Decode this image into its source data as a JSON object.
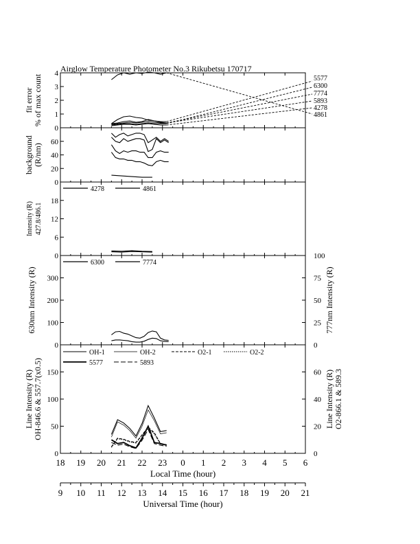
{
  "title": "Airglow Temperature Photometer No.3   Rikubetsu    170717",
  "axes": {
    "local_time": {
      "label": "Local Time (hour)",
      "range": [
        18,
        30
      ],
      "ticks": [
        "18",
        "19",
        "20",
        "21",
        "22",
        "23",
        "0",
        "1",
        "2",
        "3",
        "4",
        "5",
        "6"
      ]
    },
    "universal_time": {
      "label": "Universal Time (hour)",
      "range": [
        9,
        21
      ],
      "ticks": [
        "9",
        "10",
        "11",
        "12",
        "13",
        "14",
        "15",
        "16",
        "17",
        "18",
        "19",
        "20",
        "21"
      ]
    }
  },
  "chart_data": [
    {
      "type": "line",
      "panel": "fit-error",
      "ylabel": [
        "fit error",
        "% of max count"
      ],
      "ylim": [
        0,
        4
      ],
      "yticks": [
        "0",
        "1",
        "2",
        "3",
        "4"
      ],
      "legend": [
        "5577",
        "6300",
        "7774",
        "5893",
        "4278",
        "4861"
      ],
      "legend_placement": "right",
      "series": [
        {
          "name": "5577",
          "style": "solid",
          "x": [
            20.5,
            20.8,
            21.1,
            21.4,
            21.7,
            22.0,
            22.3,
            22.6,
            22.9,
            23.2
          ],
          "y": [
            3.5,
            3.85,
            4.0,
            3.9,
            4.0,
            3.95,
            4.05,
            4.0,
            3.9,
            4.0
          ],
          "end_y": 1.0
        },
        {
          "name": "6300",
          "style": "solid",
          "x": [
            20.5,
            20.8,
            21.1,
            21.4,
            21.7,
            22.0,
            22.3,
            22.6,
            22.9,
            23.2
          ],
          "y": [
            0.3,
            0.35,
            0.45,
            0.5,
            0.4,
            0.45,
            0.6,
            0.5,
            0.45,
            0.45
          ],
          "end_y": 3.4
        },
        {
          "name": "7774",
          "style": "solid",
          "x": [
            20.5,
            20.8,
            21.1,
            21.4,
            21.7,
            22.0,
            22.3,
            22.6,
            22.9,
            23.2
          ],
          "y": [
            0.2,
            0.25,
            0.3,
            0.3,
            0.25,
            0.3,
            0.35,
            0.3,
            0.3,
            0.3
          ],
          "end_y": 2.95
        },
        {
          "name": "5893",
          "style": "solid",
          "x": [
            20.5,
            20.8,
            21.1,
            21.4,
            21.7,
            22.0,
            22.3,
            22.6,
            22.9,
            23.2
          ],
          "y": [
            0.3,
            0.6,
            0.8,
            0.85,
            0.75,
            0.7,
            0.55,
            0.5,
            0.4,
            0.35
          ],
          "end_y": 2.45
        },
        {
          "name": "4278",
          "style": "solid",
          "x": [
            20.5,
            20.8,
            21.1,
            21.4,
            21.7,
            22.0,
            22.3,
            22.6,
            22.9,
            23.2
          ],
          "y": [
            0.25,
            0.3,
            0.35,
            0.4,
            0.35,
            0.4,
            0.45,
            0.4,
            0.35,
            0.35
          ],
          "end_y": 1.95
        },
        {
          "name": "4861",
          "style": "solid",
          "x": [
            20.5,
            20.8,
            21.1,
            21.4,
            21.7,
            22.0,
            22.3,
            22.6,
            22.9,
            23.2
          ],
          "y": [
            0.15,
            0.2,
            0.25,
            0.25,
            0.2,
            0.25,
            0.3,
            0.25,
            0.2,
            0.2
          ],
          "end_y": 1.45
        }
      ]
    },
    {
      "type": "line",
      "panel": "background",
      "ylabel": [
        "background",
        "(R/nm)"
      ],
      "ylim": [
        0,
        80
      ],
      "yticks": [
        "0",
        "20",
        "40",
        "60"
      ],
      "series": [
        {
          "x": [
            20.5,
            20.7,
            20.9,
            21.1,
            21.3,
            21.5,
            21.7,
            21.9,
            22.1,
            22.3,
            22.5,
            22.7,
            22.9,
            23.1,
            23.3
          ],
          "y": [
            72,
            66,
            70,
            72,
            68,
            70,
            72,
            72,
            70,
            58,
            62,
            66,
            60,
            64,
            60
          ]
        },
        {
          "x": [
            20.5,
            20.7,
            20.9,
            21.1,
            21.3,
            21.5,
            21.7,
            21.9,
            22.1,
            22.3,
            22.5,
            22.7,
            22.9,
            23.1,
            23.3
          ],
          "y": [
            66,
            60,
            58,
            64,
            60,
            62,
            64,
            64,
            62,
            45,
            48,
            64,
            58,
            62,
            58
          ]
        },
        {
          "x": [
            20.5,
            20.7,
            20.9,
            21.1,
            21.3,
            21.5,
            21.7,
            21.9,
            22.1,
            22.3,
            22.5,
            22.7,
            22.9,
            23.1,
            23.3
          ],
          "y": [
            55,
            46,
            42,
            46,
            44,
            46,
            46,
            44,
            44,
            36,
            36,
            44,
            46,
            44,
            44
          ]
        },
        {
          "x": [
            20.5,
            20.7,
            20.9,
            21.1,
            21.3,
            21.5,
            21.7,
            21.9,
            22.1,
            22.3,
            22.5,
            22.7,
            22.9,
            23.1,
            23.3
          ],
          "y": [
            44,
            36,
            34,
            34,
            32,
            32,
            30,
            30,
            28,
            25,
            24,
            30,
            32,
            30,
            30
          ]
        },
        {
          "x": [
            20.5,
            21.0,
            21.5,
            22.0,
            22.5
          ],
          "y": [
            10,
            9,
            8,
            7,
            7
          ]
        }
      ]
    },
    {
      "type": "line",
      "panel": "intensity-ratio",
      "ylabel": [
        "Intensity (R)",
        "427.8/486.1"
      ],
      "ylim": [
        0,
        24
      ],
      "yticks": [
        "0",
        "6",
        "12",
        "18"
      ],
      "legend": [
        "4278",
        "4861"
      ],
      "legend_placement": "top-left",
      "series": [
        {
          "name": "4278",
          "x": [
            20.5,
            21.0,
            21.5,
            22.0,
            22.5
          ],
          "y": [
            1.5,
            1.4,
            1.6,
            1.4,
            1.3
          ]
        },
        {
          "name": "4861",
          "x": [
            20.5,
            21.0,
            21.5,
            22.0,
            22.5
          ],
          "y": [
            1.2,
            1.1,
            1.3,
            1.2,
            1.1
          ]
        }
      ]
    },
    {
      "type": "line",
      "panel": "630-777",
      "ylabel": "630nm Intensity (R)",
      "ylim": [
        0,
        400
      ],
      "yticks": [
        "0",
        "100",
        "200",
        "300"
      ],
      "y2label": "777nm Intensity (R)",
      "y2lim": [
        0,
        100
      ],
      "y2ticks": [
        "0",
        "25",
        "50",
        "75",
        "100"
      ],
      "legend": [
        "6300",
        "7774"
      ],
      "legend_placement": "top-left",
      "series": [
        {
          "name": "6300",
          "x": [
            20.5,
            20.7,
            20.9,
            21.1,
            21.3,
            21.5,
            21.7,
            21.9,
            22.1,
            22.3,
            22.5,
            22.7,
            22.9,
            23.1,
            23.3
          ],
          "y": [
            45,
            58,
            60,
            52,
            48,
            40,
            32,
            30,
            38,
            55,
            62,
            58,
            30,
            22,
            20
          ]
        },
        {
          "name": "7774",
          "x": [
            20.5,
            20.7,
            20.9,
            21.1,
            21.3,
            21.5,
            21.7,
            21.9,
            22.1,
            22.3,
            22.5,
            22.7,
            22.9,
            23.1,
            23.3
          ],
          "y": [
            18,
            22,
            22,
            20,
            18,
            14,
            12,
            12,
            16,
            24,
            30,
            28,
            18,
            15,
            14
          ]
        }
      ]
    },
    {
      "type": "line",
      "panel": "line-intensity",
      "ylabel": [
        "Line Intensity (R)",
        "OH-846.6 & 557.7(x0.5)"
      ],
      "ylim": [
        0,
        200
      ],
      "yticks": [
        "0",
        "50",
        "100",
        "150"
      ],
      "y2label": [
        "Line Intensity (R)",
        "O2-866.1 & 589.3"
      ],
      "y2lim": [
        0,
        80
      ],
      "y2ticks": [
        "0",
        "20",
        "40",
        "60"
      ],
      "legend": [
        "OH-1",
        "OH-2",
        "O2-1",
        "O2-2",
        "5577",
        "5893"
      ],
      "legend_placement": "top",
      "series": [
        {
          "name": "OH-1",
          "style": "solid",
          "x": [
            20.5,
            20.8,
            21.1,
            21.4,
            21.7,
            22.0,
            22.3,
            22.6,
            22.9,
            23.2
          ],
          "y": [
            35,
            62,
            56,
            46,
            32,
            55,
            88,
            65,
            40,
            42
          ]
        },
        {
          "name": "OH-2",
          "style": "thin",
          "x": [
            20.5,
            20.8,
            21.1,
            21.4,
            21.7,
            22.0,
            22.3,
            22.6,
            22.9,
            23.2
          ],
          "y": [
            30,
            58,
            52,
            42,
            28,
            50,
            80,
            60,
            36,
            38
          ]
        },
        {
          "name": "O2-1",
          "style": "dashed",
          "x": [
            20.5,
            20.8,
            21.1,
            21.4,
            21.7,
            22.0,
            22.3,
            22.6,
            22.9,
            23.2
          ],
          "y": [
            12,
            28,
            26,
            22,
            20,
            34,
            48,
            38,
            18,
            16
          ]
        },
        {
          "name": "O2-2",
          "style": "dotted",
          "x": [
            20.5,
            20.8,
            21.1,
            21.4,
            21.7,
            22.0,
            22.3,
            22.6,
            22.9,
            23.2
          ],
          "y": [
            11,
            27,
            25,
            21,
            19,
            33,
            46,
            36,
            17,
            15
          ]
        },
        {
          "name": "5577",
          "style": "thick",
          "x": [
            20.5,
            20.8,
            21.1,
            21.4,
            21.7,
            22.0,
            22.3,
            22.6,
            22.9,
            23.2
          ],
          "y": [
            25,
            18,
            20,
            14,
            10,
            28,
            50,
            20,
            18,
            15
          ]
        },
        {
          "name": "5893",
          "style": "longdash",
          "x": [
            20.5,
            20.8,
            21.1,
            21.4,
            21.7,
            22.0,
            22.3,
            22.6,
            22.9,
            23.2
          ],
          "y": [
            20,
            15,
            17,
            12,
            9,
            24,
            44,
            18,
            15,
            13
          ]
        }
      ]
    }
  ]
}
